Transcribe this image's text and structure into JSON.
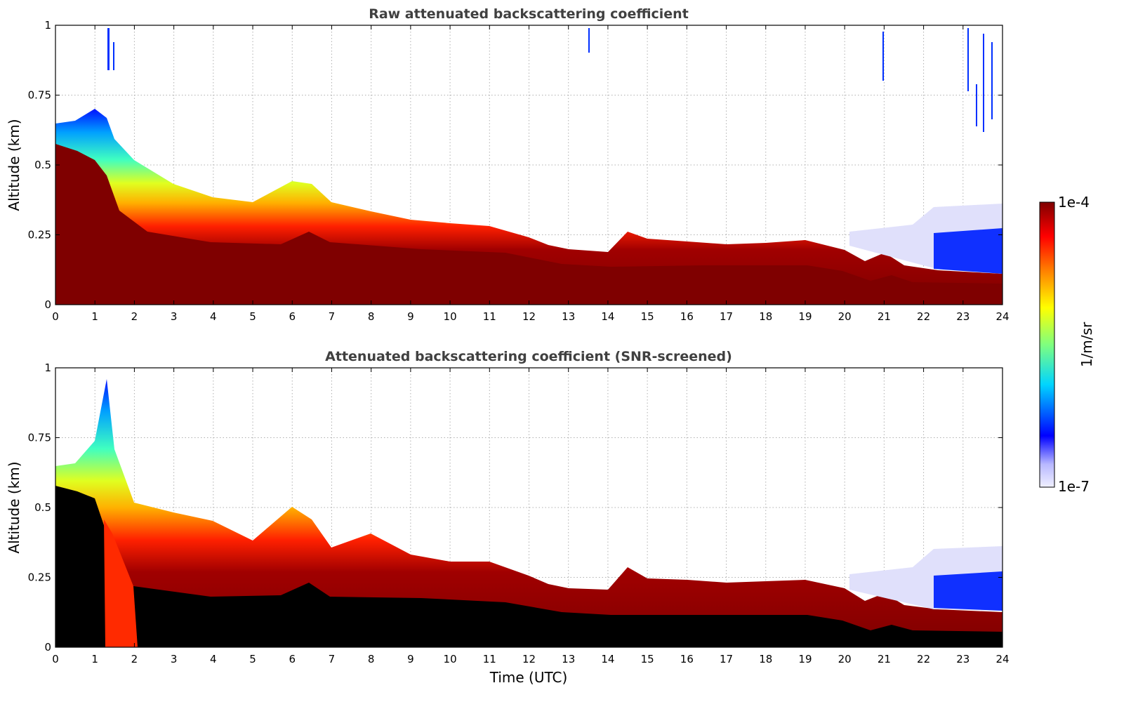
{
  "chart_data": [
    {
      "type": "heatmap",
      "id": "raw",
      "title": "Raw attenuated backscattering coefficient",
      "xlabel": "",
      "ylabel": "Altitude (km)",
      "xlim": [
        0,
        24
      ],
      "ylim": [
        0,
        1
      ],
      "xticks": [
        "0",
        "1",
        "2",
        "3",
        "4",
        "5",
        "6",
        "7",
        "8",
        "9",
        "10",
        "11",
        "12",
        "13",
        "14",
        "15",
        "16",
        "17",
        "18",
        "19",
        "20",
        "21",
        "22",
        "23",
        "24"
      ],
      "yticks": [
        "0",
        "0.25",
        "0.5",
        "0.75",
        "1"
      ],
      "grid": true,
      "screened": false,
      "layer_top_km": {
        "time": [
          0,
          0.5,
          1.0,
          1.3,
          1.5,
          2,
          3,
          4,
          5,
          6,
          6.5,
          7,
          8,
          9,
          10,
          11,
          12,
          12.5,
          13,
          14,
          14.5,
          15,
          16,
          17,
          18,
          19,
          20,
          20.7,
          21.2,
          21.7,
          22.5,
          23,
          24
        ],
        "top": [
          0.6,
          0.62,
          0.7,
          0.66,
          0.55,
          0.48,
          0.42,
          0.38,
          0.37,
          0.45,
          0.43,
          0.37,
          0.35,
          0.32,
          0.31,
          0.3,
          0.27,
          0.24,
          0.22,
          0.21,
          0.27,
          0.25,
          0.24,
          0.22,
          0.23,
          0.24,
          0.21,
          0.17,
          0.2,
          0.16,
          0.14,
          0.13,
          0.12
        ]
      }
    },
    {
      "type": "heatmap",
      "id": "screened",
      "title": "Attenuated backscattering coefficient (SNR-screened)",
      "xlabel": "Time (UTC)",
      "ylabel": "Altitude (km)",
      "xlim": [
        0,
        24
      ],
      "ylim": [
        0,
        1
      ],
      "xticks": [
        "0",
        "1",
        "2",
        "3",
        "4",
        "5",
        "6",
        "7",
        "8",
        "9",
        "10",
        "11",
        "12",
        "13",
        "14",
        "15",
        "16",
        "17",
        "18",
        "19",
        "20",
        "21",
        "22",
        "23",
        "24"
      ],
      "yticks": [
        "0",
        "0.25",
        "0.5",
        "0.75",
        "1"
      ],
      "grid": true,
      "screened": true
    }
  ],
  "colorbar": {
    "label": "1/m/sr",
    "max_label": "1e-4",
    "min_label": "1e-7",
    "colormap": "jet",
    "colors": [
      "#ededfb",
      "#0000ff",
      "#00bfff",
      "#7fff7f",
      "#ffff00",
      "#ff7f00",
      "#ff0000",
      "#7f0000"
    ]
  }
}
